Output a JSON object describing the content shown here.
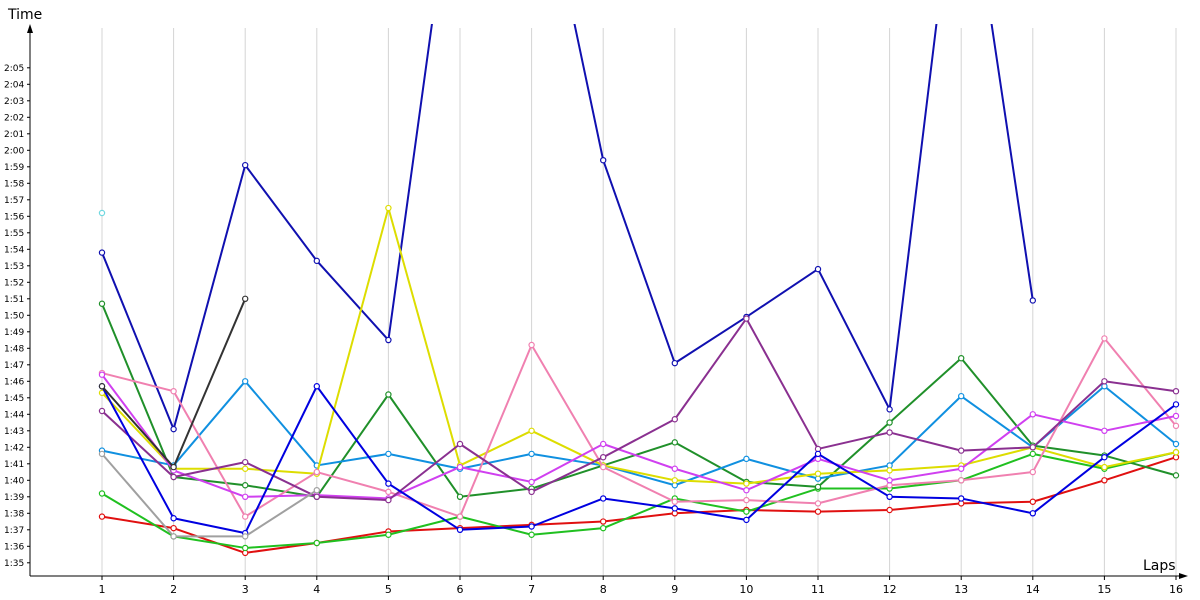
{
  "chart_data": {
    "type": "line",
    "xlabel": "Laps",
    "ylabel": "Time",
    "x": [
      1,
      2,
      3,
      4,
      5,
      6,
      7,
      8,
      9,
      10,
      11,
      12,
      13,
      14,
      15,
      16
    ],
    "x_tick_labels": [
      "1",
      "2",
      "3",
      "4",
      "5",
      "6",
      "7",
      "8",
      "9",
      "10",
      "11",
      "12",
      "13",
      "14",
      "15",
      "16"
    ],
    "y_tick_labels": [
      "1:35",
      "1:36",
      "1:37",
      "1:38",
      "1:39",
      "1:40",
      "1:41",
      "1:42",
      "1:43",
      "1:44",
      "1:45",
      "1:46",
      "1:47",
      "1:48",
      "1:49",
      "1:50",
      "1:51",
      "1:52",
      "1:53",
      "1:54",
      "1:55",
      "1:56",
      "1:57",
      "1:58",
      "1:59",
      "2:00",
      "2:01",
      "2:02",
      "2:03",
      "2:04",
      "2:05"
    ],
    "ylim": [
      94.2,
      127.3
    ],
    "grid": "vertical",
    "series": [
      {
        "color": "#1010b0",
        "values": [
          113.8,
          103.1,
          119.1,
          113.3,
          108.5,
          140.0,
          140.0,
          119.4,
          107.1,
          109.9,
          112.8,
          104.3,
          140.0,
          110.9,
          null,
          null
        ]
      },
      {
        "color": "#e01010",
        "values": [
          97.8,
          97.1,
          95.6,
          96.2,
          96.9,
          97.1,
          97.3,
          97.5,
          98.0,
          98.2,
          98.1,
          98.2,
          98.6,
          98.7,
          100.0,
          101.4
        ]
      },
      {
        "color": "#20c020",
        "values": [
          99.2,
          96.6,
          95.9,
          96.2,
          96.7,
          97.8,
          96.7,
          97.1,
          98.9,
          98.1,
          99.5,
          99.5,
          100.0,
          101.6,
          100.7,
          101.7
        ]
      },
      {
        "color": "#20902a",
        "values": [
          110.7,
          100.2,
          99.7,
          99.0,
          105.2,
          99.0,
          99.5,
          100.9,
          102.3,
          99.9,
          99.6,
          103.5,
          107.4,
          102.1,
          101.5,
          100.3
        ]
      },
      {
        "color": "#1090e0",
        "values": [
          101.8,
          100.9,
          106.0,
          100.9,
          101.6,
          100.7,
          101.6,
          100.9,
          99.7,
          101.3,
          100.1,
          100.9,
          105.1,
          102.0,
          105.7,
          102.2
        ]
      },
      {
        "color": "#dddd00",
        "values": [
          105.3,
          100.7,
          100.7,
          100.4,
          116.5,
          100.9,
          103.0,
          100.9,
          100.0,
          99.8,
          100.4,
          100.6,
          100.9,
          102.0,
          100.8,
          101.7
        ]
      },
      {
        "color": "#f080b0",
        "values": [
          106.5,
          105.4,
          97.8,
          100.5,
          99.3,
          97.8,
          108.2,
          100.8,
          98.7,
          98.8,
          98.6,
          99.7,
          100.0,
          100.5,
          108.6,
          103.3
        ]
      },
      {
        "color": "#d040f0",
        "values": [
          106.4,
          100.6,
          99.0,
          99.1,
          98.9,
          100.8,
          99.9,
          102.2,
          100.7,
          99.4,
          101.3,
          100.0,
          100.7,
          104.0,
          103.0,
          103.9
        ]
      },
      {
        "color": "#8a3090",
        "values": [
          104.2,
          100.2,
          101.1,
          99.0,
          98.8,
          102.2,
          99.3,
          101.4,
          103.7,
          109.8,
          101.9,
          102.9,
          101.8,
          102.0,
          106.0,
          105.4
        ]
      },
      {
        "color": "#0000e0",
        "values": [
          105.7,
          97.7,
          96.8,
          105.7,
          99.8,
          97.0,
          97.2,
          98.9,
          98.3,
          97.6,
          101.6,
          99.0,
          98.9,
          98.0,
          101.4,
          104.6
        ]
      },
      {
        "color": "#333333",
        "values": [
          105.7,
          100.8,
          111.0,
          null,
          null,
          null,
          null,
          null,
          null,
          null,
          null,
          null,
          null,
          null,
          null,
          null
        ]
      },
      {
        "color": "#a0a0a0",
        "values": [
          101.6,
          96.6,
          96.6,
          99.4,
          null,
          null,
          null,
          null,
          null,
          null,
          null,
          null,
          null,
          null,
          null,
          null
        ]
      },
      {
        "color": "#70d8e0",
        "values": [
          116.2,
          null,
          null,
          null,
          null,
          null,
          null,
          null,
          null,
          null,
          null,
          null,
          null,
          null,
          null,
          null
        ]
      }
    ]
  }
}
